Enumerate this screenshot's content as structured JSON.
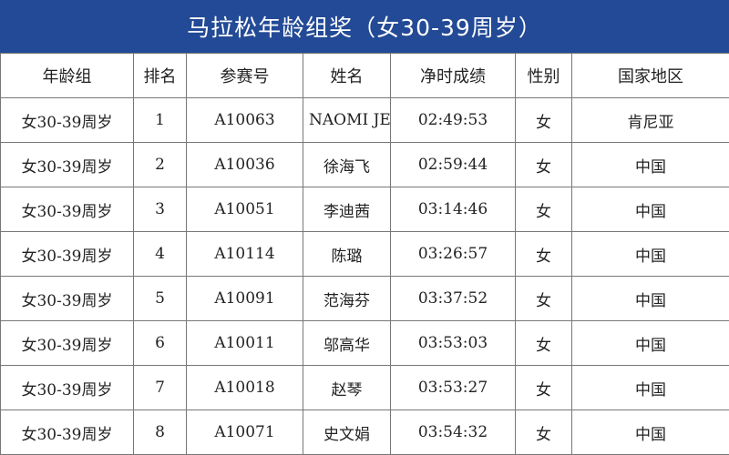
{
  "title": "马拉松年龄组奖（女30-39周岁）",
  "columns": [
    "年龄组",
    "排名",
    "参赛号",
    "姓名",
    "净时成绩",
    "性别",
    "国家地区"
  ],
  "rows": [
    [
      "女30-39周岁",
      "1",
      "A10063",
      "NAOMI JEI",
      "02:49:53",
      "女",
      "肯尼亚"
    ],
    [
      "女30-39周岁",
      "2",
      "A10036",
      "徐海飞",
      "02:59:44",
      "女",
      "中国"
    ],
    [
      "女30-39周岁",
      "3",
      "A10051",
      "李迪茜",
      "03:14:46",
      "女",
      "中国"
    ],
    [
      "女30-39周岁",
      "4",
      "A10114",
      "陈璐",
      "03:26:57",
      "女",
      "中国"
    ],
    [
      "女30-39周岁",
      "5",
      "A10091",
      "范海芬",
      "03:37:52",
      "女",
      "中国"
    ],
    [
      "女30-39周岁",
      "6",
      "A10011",
      "邬高华",
      "03:53:03",
      "女",
      "中国"
    ],
    [
      "女30-39周岁",
      "7",
      "A10018",
      "赵琴",
      "03:53:27",
      "女",
      "中国"
    ],
    [
      "女30-39周岁",
      "8",
      "A10071",
      "史文娟",
      "03:54:32",
      "女",
      "中国"
    ]
  ],
  "colors": {
    "header_bg": "#234a96"
  }
}
